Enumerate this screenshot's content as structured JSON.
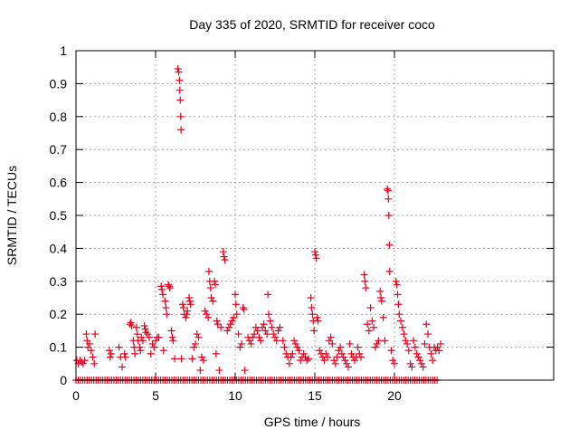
{
  "chart_data": {
    "type": "scatter",
    "title": "Day 335 of 2020, SRMTID for receiver coco",
    "xlabel": "GPS time / hours",
    "ylabel": "SRMTID / TECUs",
    "xlim": [
      0,
      30
    ],
    "ylim": [
      0,
      1
    ],
    "xticks": [
      0,
      5,
      10,
      15,
      20
    ],
    "xtick_labels": [
      "0",
      "5",
      "10",
      "15",
      "20"
    ],
    "yticks": [
      0,
      0.1,
      0.2,
      0.3,
      0.4,
      0.5,
      0.6,
      0.7,
      0.8,
      0.9,
      1
    ],
    "ytick_labels": [
      "0",
      "0.1",
      "0.2",
      "0.3",
      "0.4",
      "0.5",
      "0.6",
      "0.7",
      "0.8",
      "0.9",
      "1"
    ],
    "grid": true,
    "marker": "+",
    "color": "#e8001c",
    "series": [
      {
        "name": "SRMTID",
        "points": [
          [
            0.05,
            0.06
          ],
          [
            0.15,
            0.05
          ],
          [
            0.25,
            0.06
          ],
          [
            0.35,
            0.055
          ],
          [
            0.45,
            0.05
          ],
          [
            0.55,
            0.06
          ],
          [
            0.65,
            0.14
          ],
          [
            0.7,
            0.12
          ],
          [
            0.75,
            0.1
          ],
          [
            0.85,
            0.11
          ],
          [
            0.95,
            0.09
          ],
          [
            1.05,
            0.07
          ],
          [
            1.15,
            0.05
          ],
          [
            1.2,
            0.14
          ],
          [
            2.1,
            0.09
          ],
          [
            2.15,
            0.07
          ],
          [
            2.2,
            0.08
          ],
          [
            2.7,
            0.1
          ],
          [
            2.8,
            0.07
          ],
          [
            2.9,
            0.04
          ],
          [
            3.05,
            0.08
          ],
          [
            3.1,
            0.07
          ],
          [
            3.4,
            0.17
          ],
          [
            3.45,
            0.175
          ],
          [
            3.5,
            0.165
          ],
          [
            3.6,
            0.12
          ],
          [
            3.65,
            0.1
          ],
          [
            3.7,
            0.08
          ],
          [
            3.8,
            0.16
          ],
          [
            3.85,
            0.14
          ],
          [
            3.9,
            0.12
          ],
          [
            4.0,
            0.1
          ],
          [
            4.05,
            0.09
          ],
          [
            4.1,
            0.13
          ],
          [
            4.2,
            0.12
          ],
          [
            4.3,
            0.165
          ],
          [
            4.35,
            0.155
          ],
          [
            4.4,
            0.145
          ],
          [
            4.5,
            0.14
          ],
          [
            4.6,
            0.13
          ],
          [
            4.7,
            0.08
          ],
          [
            4.8,
            0.11
          ],
          [
            4.9,
            0.1
          ],
          [
            5.0,
            0.12
          ],
          [
            5.1,
            0.13
          ],
          [
            5.2,
            0.13
          ],
          [
            5.35,
            0.285
          ],
          [
            5.4,
            0.275
          ],
          [
            5.45,
            0.26
          ],
          [
            5.5,
            0.09
          ],
          [
            5.6,
            0.24
          ],
          [
            5.65,
            0.22
          ],
          [
            5.7,
            0.2
          ],
          [
            5.8,
            0.29
          ],
          [
            5.85,
            0.285
          ],
          [
            5.9,
            0.28
          ],
          [
            6.0,
            0.15
          ],
          [
            6.05,
            0.13
          ],
          [
            6.1,
            0.12
          ],
          [
            6.2,
            0.065
          ],
          [
            6.4,
            0.945
          ],
          [
            6.45,
            0.935
          ],
          [
            6.5,
            0.91
          ],
          [
            6.52,
            0.88
          ],
          [
            6.55,
            0.85
          ],
          [
            6.58,
            0.8
          ],
          [
            6.6,
            0.76
          ],
          [
            6.62,
            0.065
          ],
          [
            6.7,
            0.23
          ],
          [
            6.75,
            0.22
          ],
          [
            6.8,
            0.2
          ],
          [
            6.9,
            0.19
          ],
          [
            6.95,
            0.2
          ],
          [
            7.0,
            0.21
          ],
          [
            7.1,
            0.25
          ],
          [
            7.15,
            0.24
          ],
          [
            7.2,
            0.23
          ],
          [
            7.3,
            0.065
          ],
          [
            7.4,
            0.1
          ],
          [
            7.5,
            0.11
          ],
          [
            7.6,
            0.14
          ],
          [
            7.7,
            0.13
          ],
          [
            7.8,
            0.03
          ],
          [
            7.9,
            0.07
          ],
          [
            8.0,
            0.06
          ],
          [
            8.1,
            0.21
          ],
          [
            8.2,
            0.2
          ],
          [
            8.3,
            0.19
          ],
          [
            8.35,
            0.33
          ],
          [
            8.4,
            0.3
          ],
          [
            8.45,
            0.28
          ],
          [
            8.5,
            0.25
          ],
          [
            8.6,
            0.24
          ],
          [
            8.7,
            0.3
          ],
          [
            8.75,
            0.29
          ],
          [
            8.8,
            0.08
          ],
          [
            8.85,
            0.18
          ],
          [
            8.9,
            0.17
          ],
          [
            9.0,
            0.03
          ],
          [
            9.1,
            0.16
          ],
          [
            9.25,
            0.39
          ],
          [
            9.3,
            0.375
          ],
          [
            9.35,
            0.365
          ],
          [
            9.5,
            0.15
          ],
          [
            9.6,
            0.16
          ],
          [
            9.7,
            0.17
          ],
          [
            9.8,
            0.18
          ],
          [
            9.9,
            0.19
          ],
          [
            10.0,
            0.26
          ],
          [
            10.05,
            0.23
          ],
          [
            10.1,
            0.2
          ],
          [
            10.2,
            0.14
          ],
          [
            10.3,
            0.1
          ],
          [
            10.4,
            0.11
          ],
          [
            10.5,
            0.22
          ],
          [
            10.55,
            0.215
          ],
          [
            10.6,
            0.03
          ],
          [
            10.8,
            0.13
          ],
          [
            10.9,
            0.12
          ],
          [
            11.0,
            0.11
          ],
          [
            11.1,
            0.13
          ],
          [
            11.2,
            0.14
          ],
          [
            11.3,
            0.16
          ],
          [
            11.4,
            0.15
          ],
          [
            11.5,
            0.13
          ],
          [
            11.6,
            0.12
          ],
          [
            11.7,
            0.16
          ],
          [
            11.8,
            0.17
          ],
          [
            11.9,
            0.15
          ],
          [
            12.0,
            0.14
          ],
          [
            12.05,
            0.26
          ],
          [
            12.1,
            0.2
          ],
          [
            12.2,
            0.18
          ],
          [
            12.3,
            0.16
          ],
          [
            12.4,
            0.14
          ],
          [
            12.5,
            0.13
          ],
          [
            12.6,
            0.12
          ],
          [
            12.7,
            0.15
          ],
          [
            12.8,
            0.16
          ],
          [
            13.0,
            0.12
          ],
          [
            13.1,
            0.1
          ],
          [
            13.2,
            0.08
          ],
          [
            13.3,
            0.07
          ],
          [
            13.4,
            0.05
          ],
          [
            13.5,
            0.07
          ],
          [
            13.6,
            0.08
          ],
          [
            13.7,
            0.12
          ],
          [
            13.8,
            0.11
          ],
          [
            13.9,
            0.1
          ],
          [
            14.0,
            0.09
          ],
          [
            14.1,
            0.06
          ],
          [
            14.2,
            0.07
          ],
          [
            14.3,
            0.08
          ],
          [
            14.4,
            0.07
          ],
          [
            14.5,
            0.06
          ],
          [
            14.6,
            0.065
          ],
          [
            14.75,
            0.25
          ],
          [
            14.8,
            0.22
          ],
          [
            14.85,
            0.2
          ],
          [
            14.9,
            0.18
          ],
          [
            14.95,
            0.15
          ],
          [
            15.0,
            0.39
          ],
          [
            15.05,
            0.38
          ],
          [
            15.1,
            0.37
          ],
          [
            15.15,
            0.19
          ],
          [
            15.2,
            0.18
          ],
          [
            15.3,
            0.09
          ],
          [
            15.4,
            0.08
          ],
          [
            15.5,
            0.07
          ],
          [
            15.6,
            0.06
          ],
          [
            15.7,
            0.08
          ],
          [
            15.8,
            0.07
          ],
          [
            15.9,
            0.12
          ],
          [
            16.0,
            0.13
          ],
          [
            16.1,
            0.11
          ],
          [
            16.2,
            0.06
          ],
          [
            16.3,
            0.05
          ],
          [
            16.4,
            0.07
          ],
          [
            16.5,
            0.09
          ],
          [
            16.6,
            0.1
          ],
          [
            16.7,
            0.08
          ],
          [
            16.8,
            0.07
          ],
          [
            16.9,
            0.06
          ],
          [
            17.0,
            0.05
          ],
          [
            17.1,
            0.04
          ],
          [
            17.2,
            0.11
          ],
          [
            17.3,
            0.08
          ],
          [
            17.4,
            0.07
          ],
          [
            17.5,
            0.06
          ],
          [
            17.6,
            0.07
          ],
          [
            17.7,
            0.1
          ],
          [
            17.8,
            0.08
          ],
          [
            17.9,
            0.07
          ],
          [
            18.1,
            0.32
          ],
          [
            18.15,
            0.3
          ],
          [
            18.2,
            0.28
          ],
          [
            18.3,
            0.17
          ],
          [
            18.4,
            0.15
          ],
          [
            18.5,
            0.22
          ],
          [
            18.6,
            0.18
          ],
          [
            18.7,
            0.16
          ],
          [
            18.8,
            0.1
          ],
          [
            18.9,
            0.11
          ],
          [
            19.0,
            0.12
          ],
          [
            19.1,
            0.27
          ],
          [
            19.15,
            0.25
          ],
          [
            19.2,
            0.24
          ],
          [
            19.3,
            0.19
          ],
          [
            19.4,
            0.12
          ],
          [
            19.55,
            0.58
          ],
          [
            19.6,
            0.575
          ],
          [
            19.62,
            0.55
          ],
          [
            19.65,
            0.5
          ],
          [
            19.68,
            0.41
          ],
          [
            19.7,
            0.33
          ],
          [
            19.8,
            0.09
          ],
          [
            19.9,
            0.06
          ],
          [
            20.0,
            0.05
          ],
          [
            20.1,
            0.3
          ],
          [
            20.15,
            0.29
          ],
          [
            20.2,
            0.26
          ],
          [
            20.25,
            0.23
          ],
          [
            20.3,
            0.2
          ],
          [
            20.4,
            0.18
          ],
          [
            20.5,
            0.16
          ],
          [
            20.6,
            0.14
          ],
          [
            20.7,
            0.12
          ],
          [
            20.8,
            0.11
          ],
          [
            20.9,
            0.09
          ],
          [
            21.0,
            0.05
          ],
          [
            21.1,
            0.04
          ],
          [
            21.2,
            0.12
          ],
          [
            21.3,
            0.1
          ],
          [
            21.4,
            0.08
          ],
          [
            21.5,
            0.07
          ],
          [
            21.6,
            0.06
          ],
          [
            21.7,
            0.05
          ],
          [
            21.8,
            0.04
          ],
          [
            21.9,
            0.11
          ],
          [
            22.0,
            0.17
          ],
          [
            22.1,
            0.14
          ],
          [
            22.2,
            0.1
          ],
          [
            22.3,
            0.08
          ],
          [
            22.4,
            0.06
          ],
          [
            22.5,
            0.1
          ],
          [
            22.6,
            0.09
          ],
          [
            22.7,
            0.1
          ],
          [
            22.8,
            0.09
          ],
          [
            22.9,
            0.11
          ]
        ]
      }
    ],
    "zero_band": {
      "x_start": 0,
      "x_end": 22.8,
      "y": 0
    }
  }
}
